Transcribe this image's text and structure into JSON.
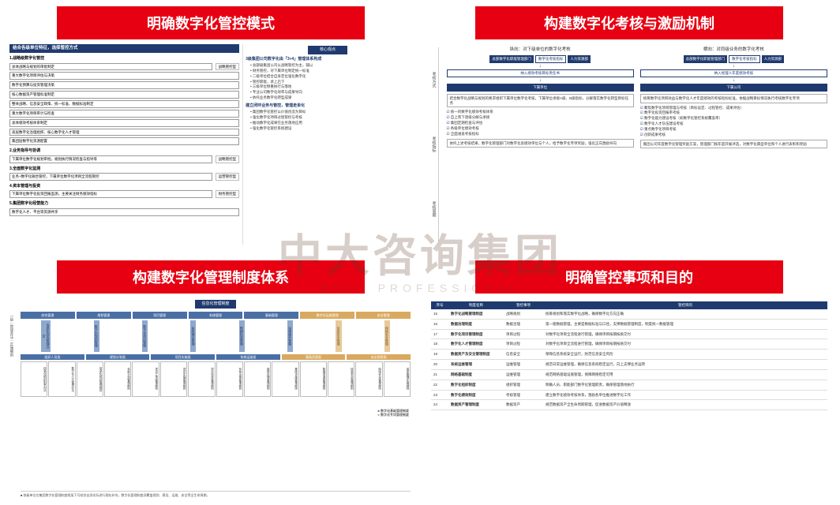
{
  "watermark": "中大咨询集团",
  "watermark_sub": "MOST PROFESSIONAL",
  "panels": {
    "p1": {
      "title": "明确数字化管控模式",
      "left_head": "结合各级单位特征，选择管控方式",
      "sections": [
        {
          "head": "1.战略级数字化管控",
          "rows": [
            [
              "总体战略与规划的审批制定"
            ],
            [
              "重大数字化项目评估与决策"
            ],
            [
              "数字化预算与投资管理决策"
            ],
            [
              "核心数据资产管理标准制定"
            ],
            [
              "整体战略、信息安全政策、统一标准、数据标准制定"
            ],
            [
              "重大数字化项目审计与检查"
            ],
            [
              "总体绩效考核体系制定"
            ],
            [
              "高层数字化治理组织、核心数字化人才管理"
            ],
            [
              "集团层数字化资源配置"
            ]
          ],
          "tags": [
            "战略管控型",
            "",
            "",
            "",
            "",
            "",
            "",
            "",
            ""
          ]
        },
        {
          "head": "2.业务指导与协调",
          "rows": [
            [
              "下属单位数字化规划审批，规划执行情况检查与指导等"
            ]
          ],
          "tags": [
            "战略管控型"
          ]
        },
        {
          "head": "3.全面数字化监测",
          "rows": [
            [
              "业务+数字化融合管控，下属单位数字化项目全流程管控"
            ]
          ],
          "tags": [
            "运营管控型"
          ]
        },
        {
          "head": "4.资本管理与投资",
          "rows": [
            [
              "下属单位数字化投资回报监测，主要关注财务绩效指标"
            ]
          ],
          "tags": [
            "财务管控型"
          ]
        },
        {
          "head": "5.集团数字化经营能力",
          "rows": [
            [
              "数字化人才、平台等资源共享"
            ]
          ],
          "tags": [
            ""
          ]
        }
      ],
      "right_head": "核心观点",
      "right_title": "3级集团公司数字化由「3+4」管理体系构成",
      "right_items": [
        "总部级集团公司以战略管控为主，辅以",
        "财务管控，对下属单位制定统一标准",
        "二级单位结合自身定位强化数字化",
        "管控职能，承上启下",
        "三级单位侧重执行与落地",
        "专业公司数字化效率与成果导向",
        "依托业务数字化转型成果"
      ],
      "right_title2": "建立闭环业务与管控，管理走单化",
      "right_items2": [
        "集团数字化管控以价值创造为目标",
        "强化数字化项目过程管控与考核",
        "推动数字化成果在业务落地应用",
        "强化数字化管控系统建设"
      ]
    },
    "p2": {
      "title": "构建数字化考核与激励机制",
      "col1_head": "纵向：对下级单位的数字化考核",
      "col2_head": "横向：对同级业务的数字化考核",
      "blocks": {
        "a1": "总部数字化职能管理部门",
        "a2": "数字化考核指标",
        "a3": "人力资源部",
        "a4": "纳入绩效考核目标责任书",
        "a5": "下属单位",
        "b1": "总部数字化职能管理部门",
        "b2": "数字化考核指标",
        "b3": "人力资源部",
        "b4": "纳入经理人年度绩效考核",
        "b5": "下属公司"
      },
      "box1": "结合数字化战略与规划的要求组织下属单位数字化考核，下属单位承接A级、B级指标，分解落实数字化转型目标任务",
      "box2": "统筹数字化项目效益与数字化人才年度绩效的考核指标标准，依据战略目标情况执行考核数字化专项",
      "checks1": [
        "统一的数字化绩效考核体系",
        "自上而下逐级分解与承接",
        "集团定期检查与评估",
        "各级单位绩效考核",
        "全面涵盖考核指标"
      ],
      "checks2": [
        "聚焦数字化项目管理与考核（目标设定、过程管控、成果评估）",
        "数字化投资回报率考核",
        "数字化能力建设考核（如数字化管控系统覆盖率）",
        "数字化人才队伍建设考核",
        "重点数字化项目考核",
        "创新成果考核"
      ],
      "box3": "依托上述考核结果，数字化管理部门对数字化高绩效单位与个人，给予数字化专项奖励，强化正向激励导向",
      "box4": "集团公司年度数字化管理奖励方案，管理部门按年度开展评选，对数字化典型单位和个人进行表彰和奖励",
      "side": [
        "考核方式",
        "考核指标",
        "考核周期"
      ]
    },
    "p3": {
      "title": "构建数字化管理制度体系",
      "root": "信息化管理制度",
      "level2": [
        "综合管理",
        "规划管理",
        "项目管理",
        "系统管理",
        "基础管理",
        "数字化运维管理",
        "安全管理"
      ],
      "level3_b": [
        "信息化综合管理办法",
        "数字化规划管理",
        "数字化项目管理",
        "系统建设管理",
        "数据标准管理",
        "运维服务管理"
      ],
      "level3_o": [
        "信息安全管理",
        "网络安全管理"
      ],
      "bot_heads_b": [
        "组织人员类",
        "规划计划类",
        "项目实施类",
        "系统运维类"
      ],
      "bot_heads_o": [
        "基础资源类",
        "安全保密类"
      ],
      "verts2": [
        "信息化组织职责办法",
        "数字化人才管理办法",
        "信息化规划管理细则",
        "年度计划管理细则",
        "项目立项管理细则",
        "项目实施管理细则",
        "项目验收管理细则",
        "系统运维管理细则",
        "故障处理管理细则",
        "基础设施管理细则",
        "数据资源管理细则",
        "信息安全管理细则",
        "网络安全管理细则",
        "保密管理实施细则"
      ],
      "legend_b": "数字化基础管理制度",
      "legend_o": "数字化专项管理制度",
      "footer": "■ 各级单位在集团数字化管理制度框架下可结合自身实际进行细化补充。数字化管理制度须覆盖规划、建设、运维、安全等全生命周期。",
      "side_top": "一级",
      "side_mid": "管理办法",
      "side_bot": "实施细则"
    },
    "p4": {
      "title": "明确管控事项和目的",
      "cols": [
        "序号",
        "制度名称",
        "管控事项",
        "管控目的"
      ],
      "rows": [
        [
          "15",
          "数字化战略管理制度",
          "战略规划",
          "统筹规划和落实数字化战略，确保数字化方向正确"
        ],
        [
          "16",
          "数据治理制度",
          "数据治理",
          "第一版数据管理，主要是数据标准与口径，支撑数据管理制度，制度统一数据管理"
        ],
        [
          "17",
          "数字化项目管理制度",
          "项目过程",
          "对数字化项目全流程进行管理，确保项目按期按质交付"
        ],
        [
          "18",
          "数字化人才管理制度",
          "项目过程",
          "对数字化项目全流程进行管理，确保项目按期按质交付"
        ],
        [
          "19",
          "数据资产及安全管理制度",
          "信息安全",
          "保障信息系统安全运行，防范信息安全风险"
        ],
        [
          "20",
          "系统运维管理",
          "运维管理",
          "规范日常运维管理，确保信息系统稳定运行，向上支撑业务运转"
        ],
        [
          "21",
          "网络基础制度",
          "运维管理",
          "规范网络基础设施管理，保障网络稳定可用"
        ],
        [
          "22",
          "数字化组织制度",
          "组织管理",
          "明确人员、职能部门数字化管理职责，确保管理落地执行"
        ],
        [
          "23",
          "数字化绩效制度",
          "考核管理",
          "建立数字化绩效考核体系，激励各单位推进数字化工作"
        ],
        [
          "24",
          "数据资产管理制度",
          "数据资产",
          "规范数据资产全生命周期管理，促进数据资产价值释放"
        ]
      ]
    }
  },
  "colors": {
    "red": "#e60012",
    "navy": "#1f3a6e",
    "blue": "#4a6fa5",
    "lightblue": "#8fa8cc",
    "orange": "#d9a960",
    "lightorange": "#e8c99b"
  }
}
